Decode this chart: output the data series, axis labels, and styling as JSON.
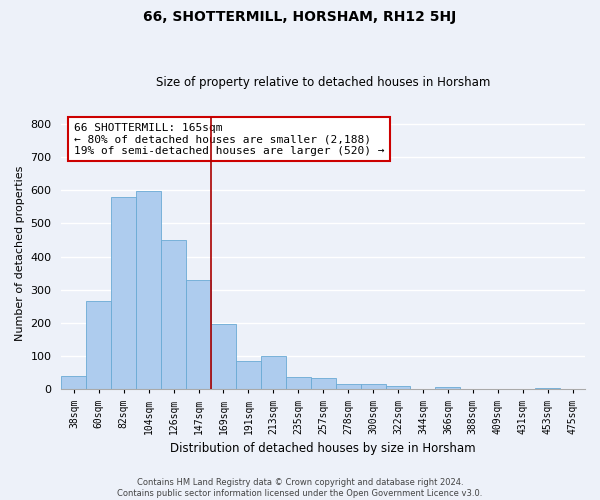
{
  "title": "66, SHOTTERMILL, HORSHAM, RH12 5HJ",
  "subtitle": "Size of property relative to detached houses in Horsham",
  "xlabel": "Distribution of detached houses by size in Horsham",
  "ylabel": "Number of detached properties",
  "bar_labels": [
    "38sqm",
    "60sqm",
    "82sqm",
    "104sqm",
    "126sqm",
    "147sqm",
    "169sqm",
    "191sqm",
    "213sqm",
    "235sqm",
    "257sqm",
    "278sqm",
    "300sqm",
    "322sqm",
    "344sqm",
    "366sqm",
    "388sqm",
    "409sqm",
    "431sqm",
    "453sqm",
    "475sqm"
  ],
  "bar_values": [
    40,
    265,
    580,
    597,
    450,
    330,
    196,
    85,
    100,
    38,
    33,
    15,
    15,
    10,
    0,
    6,
    0,
    0,
    0,
    5,
    0
  ],
  "bar_color": "#aeccee",
  "bar_edge_color": "#6aaad4",
  "vline_color": "#aa0000",
  "ylim": [
    0,
    820
  ],
  "yticks": [
    0,
    100,
    200,
    300,
    400,
    500,
    600,
    700,
    800
  ],
  "annotation_line0": "66 SHOTTERMILL: 165sqm",
  "annotation_line1": "← 80% of detached houses are smaller (2,188)",
  "annotation_line2": "19% of semi-detached houses are larger (520) →",
  "annotation_box_color": "#ffffff",
  "annotation_box_edge": "#cc0000",
  "footer_line1": "Contains HM Land Registry data © Crown copyright and database right 2024.",
  "footer_line2": "Contains public sector information licensed under the Open Government Licence v3.0.",
  "background_color": "#edf1f9",
  "grid_color": "#ffffff"
}
